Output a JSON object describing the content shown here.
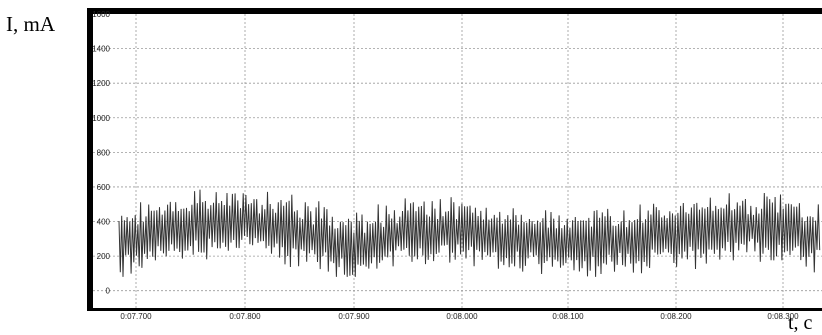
{
  "chart_data": {
    "type": "line",
    "ylabel": "I, mA",
    "xlabel": "t, c",
    "ylim": [
      -100,
      1600
    ],
    "yticks": [
      0,
      200,
      400,
      600,
      800,
      1000,
      1200,
      1400,
      1600
    ],
    "xticks": [
      "0:07.700",
      "0:07.800",
      "0:07.900",
      "0:08.000",
      "0:08.100",
      "0:08.200",
      "0:08.300"
    ],
    "grid": true,
    "series": [
      {
        "mean_trend": {
          "x": [
            "0:07.680",
            "0:07.700",
            "0:07.750",
            "0:07.800",
            "0:07.850",
            "0:07.900",
            "0:07.950",
            "0:08.000",
            "0:08.050",
            "0:08.100",
            "0:08.150",
            "0:08.200",
            "0:08.250",
            "0:08.300",
            "0:08.330"
          ],
          "y": [
            270,
            310,
            380,
            400,
            340,
            250,
            330,
            350,
            300,
            280,
            290,
            330,
            370,
            360,
            320
          ]
        },
        "envelope_high": 620,
        "envelope_low": 80
      }
    ]
  }
}
